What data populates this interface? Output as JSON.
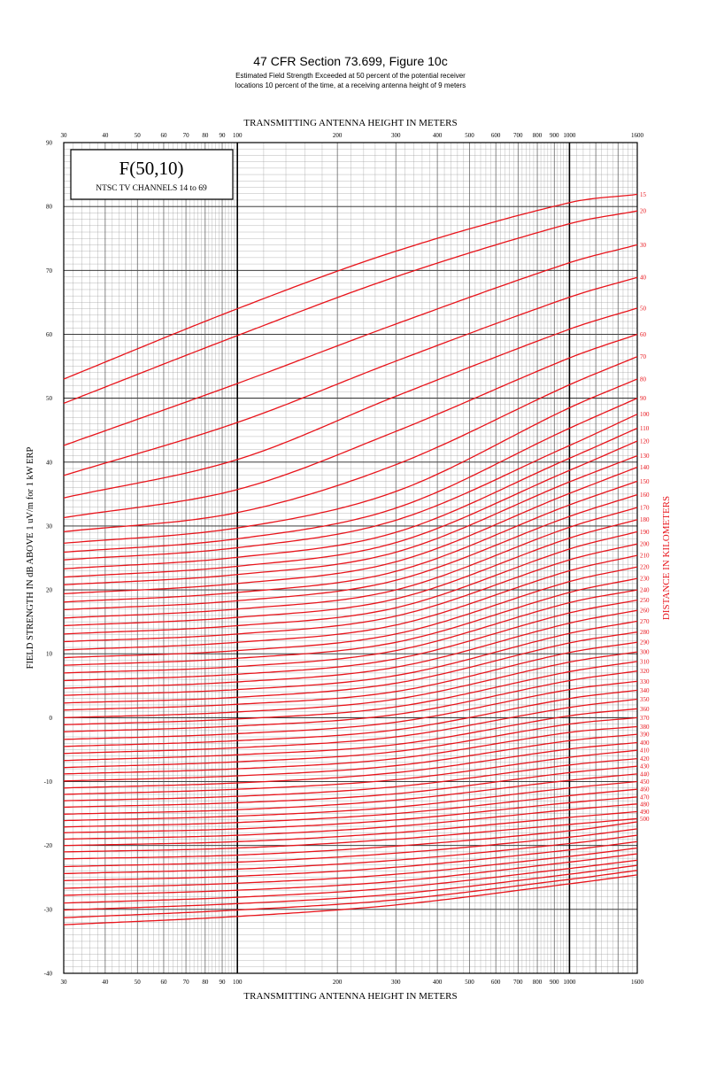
{
  "header": {
    "title": "47 CFR Section 73.699, Figure 10c",
    "subtitle_line1": "Estimated Field Strength Exceeded at 50 percent of the potential receiver",
    "subtitle_line2": "locations 10 percent of the time, at a receiving antenna height of 9 meters"
  },
  "chart_data": {
    "type": "line",
    "inset": {
      "title": "F(50,10)",
      "subtitle": "NTSC TV CHANNELS 14 to 69"
    },
    "xlabel_top": "TRANSMITTING ANTENNA HEIGHT IN METERS",
    "xlabel_bottom": "TRANSMITTING ANTENNA HEIGHT IN METERS",
    "ylabel": "FIELD STRENGTH IN dB ABOVE 1 uV/m for 1 kW ERP",
    "curve_axis_label": "DISTANCE IN KILOMETERS",
    "x_scale": "log",
    "xlim": [
      30,
      1600
    ],
    "ylim": [
      -40,
      90
    ],
    "grid": true,
    "x_ticks": [
      30,
      40,
      50,
      60,
      70,
      80,
      90,
      100,
      200,
      300,
      400,
      500,
      600,
      700,
      800,
      900,
      1000,
      1600
    ],
    "x_tick_labels": [
      "30",
      "40",
      "50",
      "60",
      "70",
      "80",
      "90",
      "100",
      "200",
      "300",
      "400",
      "500",
      "600",
      "700",
      "800",
      "900",
      "1000",
      "1600"
    ],
    "y_ticks": [
      90,
      80,
      70,
      60,
      50,
      40,
      30,
      20,
      10,
      0,
      -10,
      -20,
      -30,
      -40
    ],
    "y_tick_labels": [
      "90",
      "80",
      "70",
      "60",
      "50",
      "40",
      "30",
      "20",
      "10",
      "0",
      "-10",
      "-20",
      "-30",
      "-40"
    ],
    "x": [
      30,
      100,
      300,
      1000,
      1600
    ],
    "line_color": "#e8141b",
    "series": [
      {
        "name": "15",
        "values": [
          53.0,
          64.0,
          73.0,
          80.6,
          81.9
        ]
      },
      {
        "name": "20",
        "values": [
          49.2,
          59.8,
          69.0,
          77.3,
          79.3
        ]
      },
      {
        "name": "30",
        "values": [
          42.6,
          52.3,
          61.6,
          71.2,
          74.0
        ]
      },
      {
        "name": "40",
        "values": [
          37.9,
          46.2,
          55.8,
          65.8,
          68.9
        ]
      },
      {
        "name": "50",
        "values": [
          34.4,
          40.4,
          50.3,
          60.8,
          64.1
        ]
      },
      {
        "name": "60",
        "values": [
          31.3,
          35.7,
          44.8,
          56.3,
          60.0
        ]
      },
      {
        "name": "70",
        "values": [
          29.1,
          32.1,
          39.6,
          52.1,
          56.5
        ]
      },
      {
        "name": "80",
        "values": [
          27.3,
          29.7,
          35.4,
          48.5,
          53.0
        ]
      },
      {
        "name": "90",
        "values": [
          25.9,
          28.0,
          32.8,
          45.3,
          50.0
        ]
      },
      {
        "name": "100",
        "values": [
          24.7,
          26.6,
          30.9,
          42.6,
          47.5
        ]
      },
      {
        "name": "110",
        "values": [
          23.3,
          25.1,
          29.0,
          40.6,
          45.3
        ]
      },
      {
        "name": "120",
        "values": [
          22.0,
          23.7,
          27.4,
          38.7,
          43.3
        ]
      },
      {
        "name": "130",
        "values": [
          20.8,
          22.4,
          25.9,
          36.9,
          41.0
        ]
      },
      {
        "name": "140",
        "values": [
          19.4,
          21.0,
          24.4,
          35.1,
          39.2
        ]
      },
      {
        "name": "150",
        "values": [
          18.1,
          19.6,
          22.9,
          33.3,
          37.0
        ]
      },
      {
        "name": "160",
        "values": [
          16.9,
          18.3,
          21.5,
          31.5,
          34.9
        ]
      },
      {
        "name": "170",
        "values": [
          15.6,
          17.0,
          20.0,
          29.8,
          32.9
        ]
      },
      {
        "name": "180",
        "values": [
          14.4,
          15.7,
          18.6,
          28.1,
          31.0
        ]
      },
      {
        "name": "190",
        "values": [
          13.1,
          14.4,
          17.2,
          26.4,
          29.1
        ]
      },
      {
        "name": "200",
        "values": [
          11.9,
          13.1,
          15.9,
          24.7,
          27.2
        ]
      },
      {
        "name": "210",
        "values": [
          10.6,
          11.8,
          14.5,
          23.0,
          25.4
        ]
      },
      {
        "name": "220",
        "values": [
          9.4,
          10.5,
          13.1,
          21.3,
          23.6
        ]
      },
      {
        "name": "230",
        "values": [
          8.2,
          9.3,
          11.8,
          19.6,
          21.8
        ]
      },
      {
        "name": "240",
        "values": [
          7.0,
          8.0,
          10.5,
          18.0,
          20.0
        ]
      },
      {
        "name": "250",
        "values": [
          5.8,
          6.8,
          9.2,
          16.4,
          18.4
        ]
      },
      {
        "name": "260",
        "values": [
          4.6,
          5.6,
          7.9,
          14.8,
          16.8
        ]
      },
      {
        "name": "270",
        "values": [
          3.5,
          4.4,
          6.6,
          13.2,
          15.1
        ]
      },
      {
        "name": "280",
        "values": [
          2.3,
          3.2,
          5.4,
          11.7,
          13.4
        ]
      },
      {
        "name": "290",
        "values": [
          1.2,
          2.1,
          4.1,
          10.2,
          11.8
        ]
      },
      {
        "name": "300",
        "values": [
          0.0,
          0.9,
          2.9,
          8.7,
          10.3
        ]
      },
      {
        "name": "310",
        "values": [
          -1.1,
          -0.2,
          1.7,
          7.2,
          8.8
        ]
      },
      {
        "name": "320",
        "values": [
          -2.2,
          -1.3,
          0.5,
          5.8,
          7.3
        ]
      },
      {
        "name": "330",
        "values": [
          -3.4,
          -2.5,
          -0.7,
          4.4,
          5.7
        ]
      },
      {
        "name": "340",
        "values": [
          -4.5,
          -3.6,
          -1.9,
          3.0,
          4.3
        ]
      },
      {
        "name": "350",
        "values": [
          -5.6,
          -4.7,
          -3.0,
          1.6,
          2.9
        ]
      },
      {
        "name": "360",
        "values": [
          -6.7,
          -5.8,
          -4.2,
          0.3,
          1.4
        ]
      },
      {
        "name": "370",
        "values": [
          -7.8,
          -6.9,
          -5.3,
          -1.0,
          0.0
        ]
      },
      {
        "name": "380",
        "values": [
          -8.8,
          -8.0,
          -6.4,
          -2.3,
          -1.4
        ]
      },
      {
        "name": "390",
        "values": [
          -9.9,
          -9.1,
          -7.5,
          -3.6,
          -2.6
        ]
      },
      {
        "name": "400",
        "values": [
          -11.0,
          -10.2,
          -8.6,
          -4.9,
          -3.9
        ]
      },
      {
        "name": "410",
        "values": [
          -12.0,
          -11.2,
          -9.7,
          -6.2,
          -5.1
        ]
      },
      {
        "name": "420",
        "values": [
          -13.0,
          -12.3,
          -10.8,
          -7.4,
          -6.4
        ]
      },
      {
        "name": "430",
        "values": [
          -14.0,
          -13.3,
          -11.9,
          -8.6,
          -7.6
        ]
      },
      {
        "name": "440",
        "values": [
          -15.1,
          -14.4,
          -12.9,
          -9.8,
          -8.8
        ]
      },
      {
        "name": "450",
        "values": [
          -16.1,
          -15.4,
          -14.0,
          -11.0,
          -10.0
        ]
      },
      {
        "name": "460",
        "values": [
          -17.1,
          -16.4,
          -15.0,
          -12.2,
          -11.2
        ]
      },
      {
        "name": "470",
        "values": [
          -18.0,
          -17.4,
          -16.0,
          -13.3,
          -12.4
        ]
      },
      {
        "name": "480",
        "values": [
          -19.0,
          -18.4,
          -17.0,
          -14.4,
          -13.5
        ]
      },
      {
        "name": "490",
        "values": [
          -20.0,
          -19.4,
          -18.0,
          -15.6,
          -14.7
        ]
      },
      {
        "name": "500",
        "values": [
          -21.0,
          -20.4,
          -19.0,
          -16.7,
          -15.8
        ]
      }
    ],
    "lower_curves": [
      {
        "values": [
          -22.1,
          -21.5,
          -20.1,
          -17.7,
          -16.3
        ]
      },
      {
        "values": [
          -23.3,
          -22.6,
          -21.2,
          -18.7,
          -17.4
        ]
      },
      {
        "values": [
          -24.4,
          -23.7,
          -22.3,
          -19.7,
          -18.4
        ]
      },
      {
        "values": [
          -25.5,
          -24.8,
          -23.4,
          -20.7,
          -19.4
        ]
      },
      {
        "values": [
          -26.7,
          -25.9,
          -24.5,
          -21.7,
          -20.4
        ]
      },
      {
        "values": [
          -27.8,
          -27.0,
          -25.6,
          -22.6,
          -21.3
        ]
      },
      {
        "values": [
          -29.0,
          -28.1,
          -26.6,
          -23.6,
          -22.3
        ]
      },
      {
        "values": [
          -30.1,
          -29.1,
          -27.6,
          -24.5,
          -23.1
        ]
      },
      {
        "values": [
          -31.3,
          -30.1,
          -28.5,
          -25.3,
          -23.9
        ]
      },
      {
        "values": [
          -32.4,
          -31.1,
          -29.3,
          -26.0,
          -24.6
        ]
      }
    ]
  }
}
